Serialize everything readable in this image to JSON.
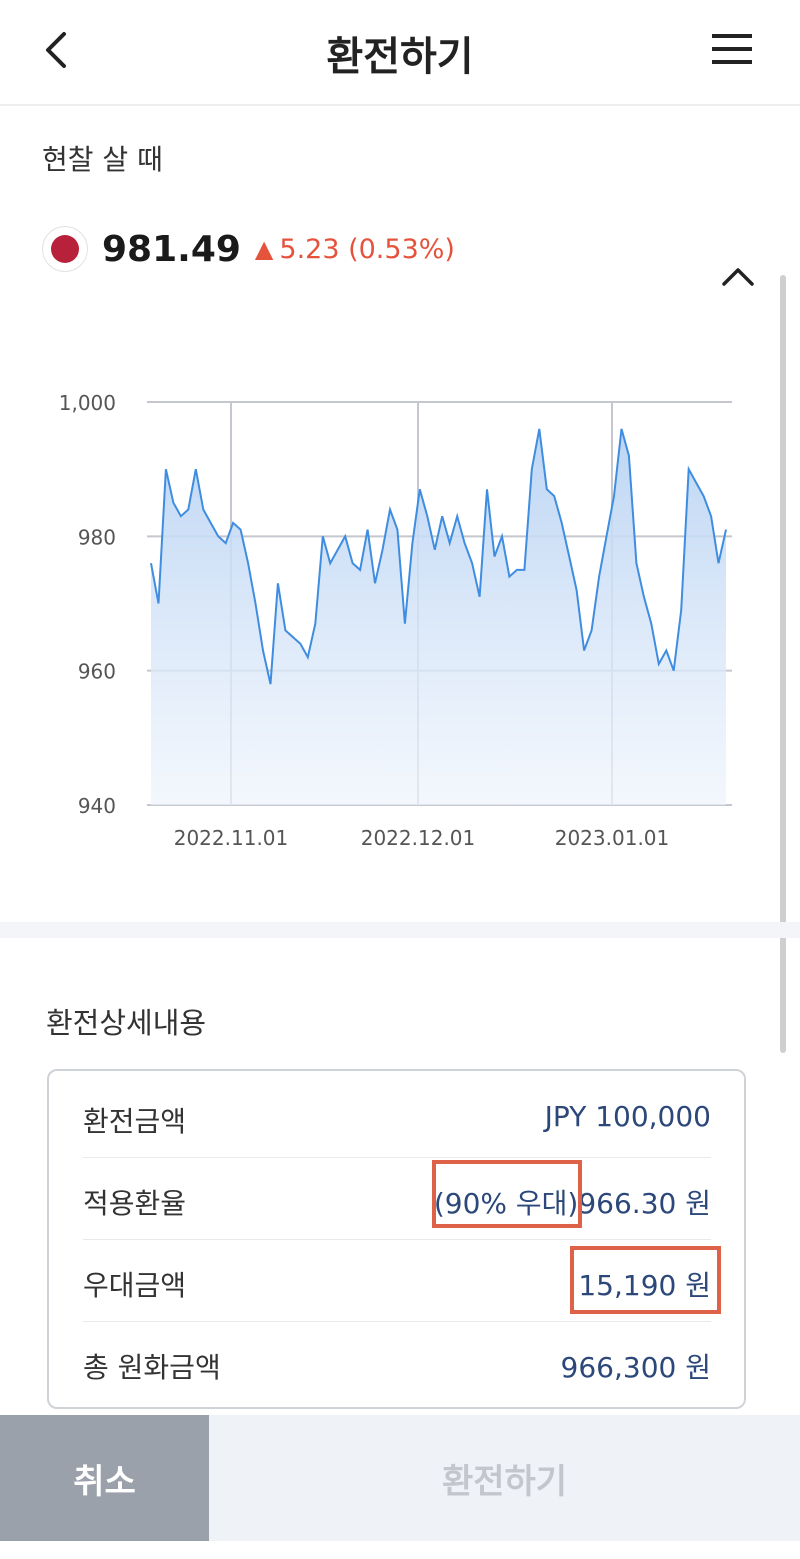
{
  "header": {
    "title": "환전하기",
    "back_icon": "chevron-left-icon",
    "menu_icon": "hamburger-menu-icon"
  },
  "rate": {
    "section_label": "현찰 살 때",
    "flag_icon": "japan-flag-icon",
    "value": "981.49",
    "change_arrow": "▲",
    "change_text": "5.23 (0.53%)",
    "change_color": "#e5533d",
    "collapse_icon": "chevron-up-icon"
  },
  "chart_data": {
    "type": "area",
    "y_ticks": [
      "1,000",
      "980",
      "960",
      "940"
    ],
    "x_ticks": [
      "2022.11.01",
      "2022.12.01",
      "2023.01.01"
    ],
    "ylim": [
      940,
      1000
    ],
    "grid": true,
    "line_color": "#3f8de0",
    "series": [
      {
        "values": [
          976,
          970,
          990,
          985,
          983,
          984,
          990,
          984,
          982,
          980,
          979,
          982,
          981,
          976,
          970,
          963,
          958,
          973,
          966,
          965,
          964,
          962,
          967,
          980,
          976,
          978,
          980,
          976,
          975,
          981,
          973,
          978,
          984,
          981,
          967,
          979,
          987,
          983,
          978,
          983,
          979,
          983,
          979,
          976,
          971,
          987,
          977,
          980,
          974,
          975,
          975,
          990,
          996,
          987,
          986,
          982,
          977,
          972,
          963,
          966,
          974,
          980,
          986,
          996,
          992,
          976,
          971,
          967,
          961,
          963,
          960,
          969,
          990,
          988,
          986,
          983,
          976,
          981
        ]
      }
    ]
  },
  "details": {
    "title": "환전상세내용",
    "rows": [
      {
        "label": "환전금액",
        "value": "JPY 100,000"
      },
      {
        "label": "적용환율",
        "badge": "(90% 우대)",
        "value": "966.30 원"
      },
      {
        "label": "우대금액",
        "value": "15,190 원"
      },
      {
        "label": "총 원화금액",
        "value": "966,300 원"
      }
    ],
    "highlight_color": "#dd6248"
  },
  "actions": {
    "cancel_label": "취소",
    "exchange_label": "환전하기"
  }
}
